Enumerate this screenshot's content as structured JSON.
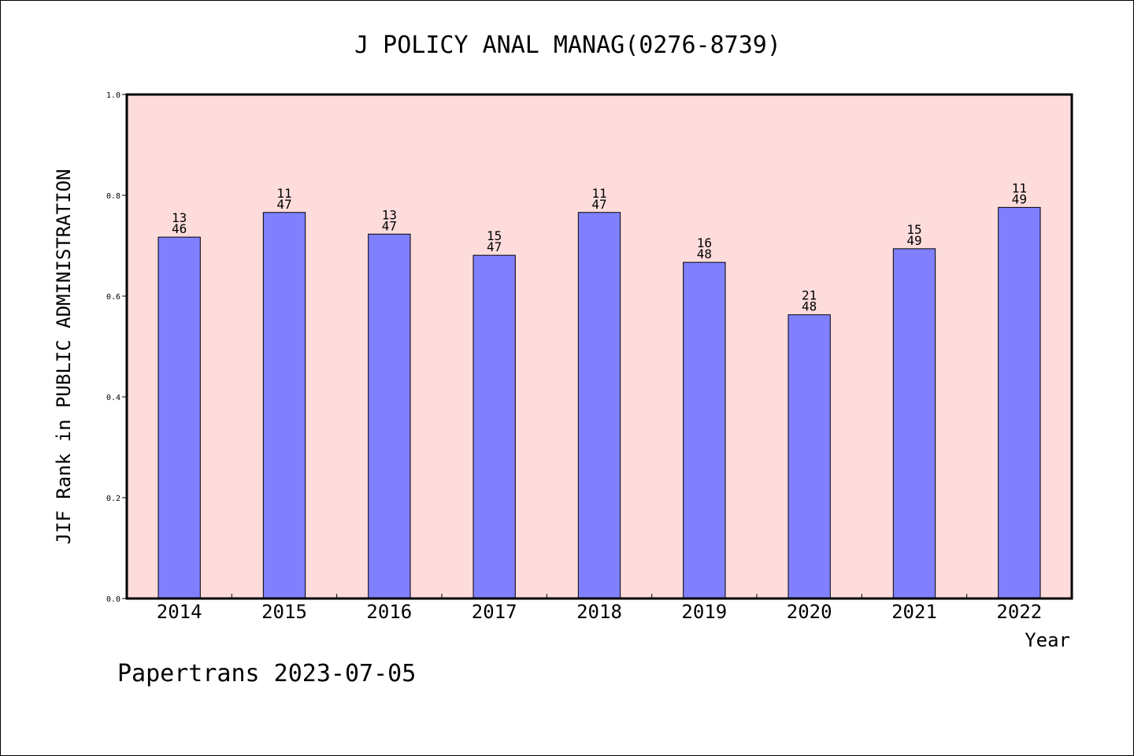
{
  "chart_data": {
    "type": "bar",
    "title": "J POLICY ANAL MANAG(0276-8739)",
    "xlabel": "Year",
    "ylabel": "JIF Rank in PUBLIC ADMINISTRATION",
    "categories": [
      "2014",
      "2015",
      "2016",
      "2017",
      "2018",
      "2019",
      "2020",
      "2021",
      "2022"
    ],
    "values": [
      0.717,
      0.766,
      0.723,
      0.681,
      0.766,
      0.667,
      0.563,
      0.694,
      0.776
    ],
    "rank_labels": [
      {
        "rank": "13",
        "total": "46"
      },
      {
        "rank": "11",
        "total": "47"
      },
      {
        "rank": "13",
        "total": "47"
      },
      {
        "rank": "15",
        "total": "47"
      },
      {
        "rank": "11",
        "total": "47"
      },
      {
        "rank": "16",
        "total": "48"
      },
      {
        "rank": "21",
        "total": "48"
      },
      {
        "rank": "15",
        "total": "49"
      },
      {
        "rank": "11",
        "total": "49"
      }
    ],
    "ylim": [
      0,
      1.0
    ],
    "yticks": [
      "0.0",
      "0.2",
      "0.4",
      "0.6",
      "0.8",
      "1.0"
    ],
    "grid": false,
    "colors": {
      "bar": "#8080ff",
      "plot_background": "#ffdcdc",
      "bar_edge": "#000000"
    }
  },
  "footer": {
    "text": "Papertrans 2023-07-05"
  }
}
